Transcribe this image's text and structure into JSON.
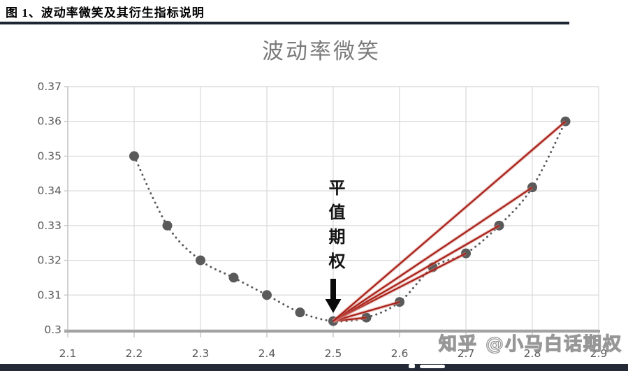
{
  "header": {
    "caption": "图 1、波动率微笑及其衍生指标说明"
  },
  "watermark": {
    "text": "知乎 @小马白话期权"
  },
  "chart_data": {
    "type": "scatter",
    "title": "波动率微笑",
    "x": [
      2.2,
      2.25,
      2.3,
      2.35,
      2.4,
      2.45,
      2.5,
      2.55,
      2.6,
      2.65,
      2.7,
      2.75,
      2.8,
      2.85
    ],
    "y": [
      0.35,
      0.33,
      0.32,
      0.315,
      0.31,
      0.305,
      0.3025,
      0.3035,
      0.308,
      0.318,
      0.322,
      0.33,
      0.341,
      0.36
    ],
    "xlim": [
      2.1,
      2.9
    ],
    "ylim": [
      0.3,
      0.37
    ],
    "x_tick_labels": [
      "2.1",
      "2.2",
      "2.3",
      "2.4",
      "2.5",
      "2.6",
      "2.7",
      "2.8",
      "2.9"
    ],
    "y_tick_labels": [
      "0.3",
      "0.31",
      "0.32",
      "0.33",
      "0.34",
      "0.35",
      "0.36",
      "0.37"
    ],
    "grid": true,
    "curve_style": "dotted",
    "annotation": {
      "text": "平值期权",
      "arrow_target_x": 2.5,
      "arrow_target_y": 0.3025
    },
    "atm_point": {
      "x": 2.5,
      "y": 0.3025
    },
    "red_lines_from_atm_to_x": [
      2.55,
      2.6,
      2.7,
      2.75,
      2.8,
      2.85
    ],
    "colors": {
      "point": "#5a5a5a",
      "curve": "#5a5a5a",
      "red_line": "#a8221a",
      "red_line_halo": "#d98c84",
      "grid": "#d8d8d8",
      "axis": "#a3a3a3",
      "minor_axis": "#c4c4c4",
      "title": "#7b7b7b",
      "tick_label": "#595959",
      "arrow": "#0a0a0a",
      "header_rule": "#1c2733",
      "bottom_bar": "#242b37"
    }
  }
}
